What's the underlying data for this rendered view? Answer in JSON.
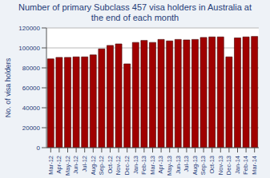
{
  "chart_data": {
    "type": "bar",
    "title": "Number of primary Subclass 457 visa holders in Australia at the end of each month",
    "y_label": "No. of visa holders",
    "categories": [
      "Mar-12",
      "Apr-12",
      "May-12",
      "Jun-12",
      "Jul-12",
      "Aug-12",
      "Sep-12",
      "Oct-12",
      "Nov-12",
      "Dec-12",
      "Jan-13",
      "Feb-13",
      "Mar-13",
      "Apr-13",
      "May-13",
      "Jun-13",
      "Jul-13",
      "Aug-13",
      "Sep-13",
      "Oct-13",
      "Nov-13",
      "Dec-13",
      "Jan-14",
      "Feb-14",
      "Mar-14"
    ],
    "values": [
      89000,
      90500,
      90500,
      91000,
      91000,
      93000,
      99000,
      102500,
      104000,
      84000,
      105500,
      107500,
      105500,
      108500,
      107000,
      108500,
      108000,
      108500,
      110500,
      111000,
      111000,
      91000,
      110000,
      111000,
      111500
    ],
    "color": "#a00000",
    "ylim": [
      0,
      120000
    ],
    "yticks": [
      0,
      20000,
      40000,
      60000,
      80000,
      100000,
      120000
    ],
    "grid": true
  }
}
